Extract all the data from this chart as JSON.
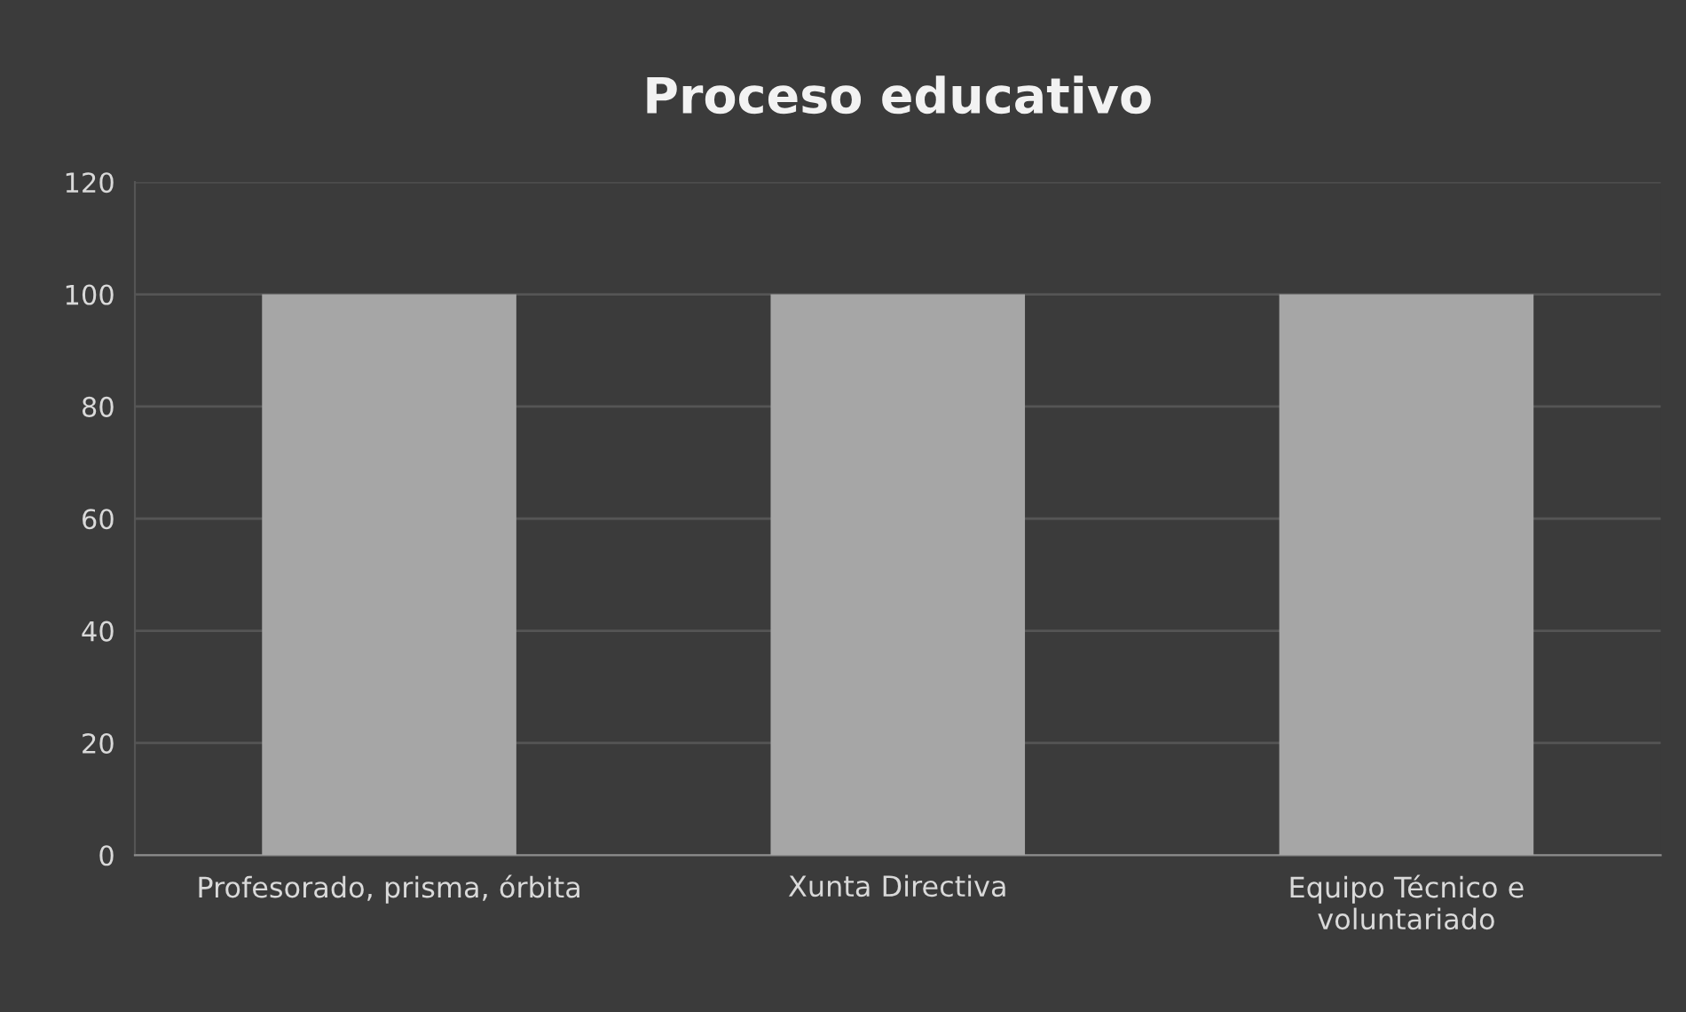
{
  "chart_data": {
    "type": "bar",
    "title": "Proceso educativo",
    "categories": [
      "Profesorado, prisma, órbita",
      "Xunta Directiva",
      "Equipo Técnico e\nvoluntariado"
    ],
    "values": [
      100,
      100,
      100
    ],
    "color": "#a6a6a6",
    "ylim": [
      0,
      120
    ],
    "yticks": [
      0,
      20,
      40,
      60,
      80,
      100,
      120
    ],
    "grid": "y"
  }
}
